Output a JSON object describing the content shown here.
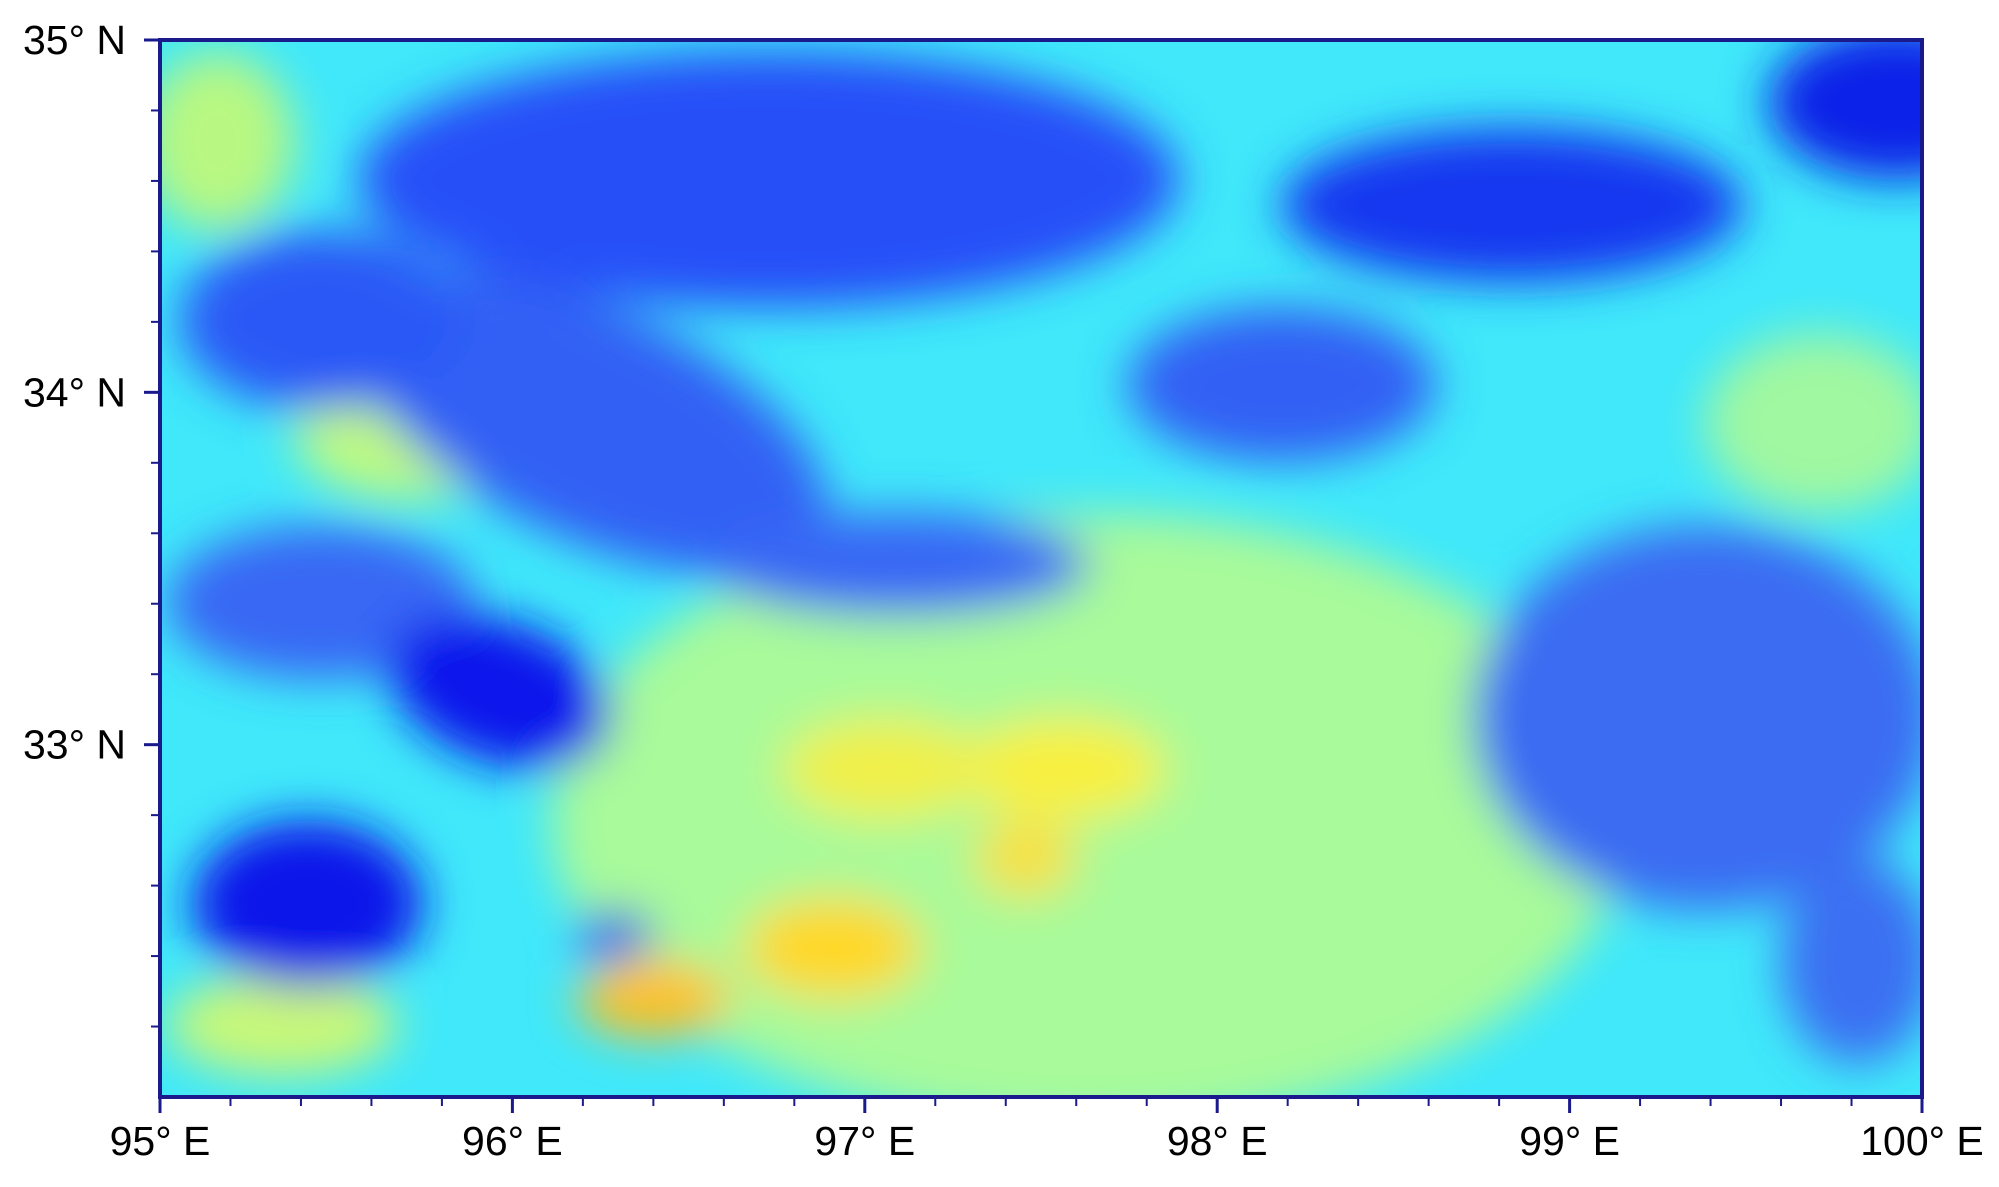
{
  "chart_data": {
    "type": "map",
    "xlim": [
      95,
      100
    ],
    "ylim": [
      32,
      35
    ],
    "xticks": [
      {
        "value": 95,
        "label": "95° E"
      },
      {
        "value": 96,
        "label": "96° E"
      },
      {
        "value": 97,
        "label": "97° E"
      },
      {
        "value": 98,
        "label": "98° E"
      },
      {
        "value": 99,
        "label": "99° E"
      },
      {
        "value": 100,
        "label": "100° E"
      }
    ],
    "yticks": [
      {
        "value": 33,
        "label": "33° N"
      },
      {
        "value": 34,
        "label": "34° N"
      },
      {
        "value": 35,
        "label": "35° N"
      }
    ],
    "xminorticks": [
      95.2,
      95.4,
      95.6,
      95.8,
      96.2,
      96.4,
      96.6,
      96.8,
      97.2,
      97.4,
      97.6,
      97.8,
      98.2,
      98.4,
      98.6,
      98.8,
      99.2,
      99.4,
      99.6,
      99.8
    ],
    "yminorticks": [
      32.2,
      32.4,
      32.6,
      32.8,
      33.2,
      33.4,
      33.6,
      33.8,
      34.2,
      34.4,
      34.6,
      34.8
    ],
    "axis_color": "#1a1a8c"
  }
}
